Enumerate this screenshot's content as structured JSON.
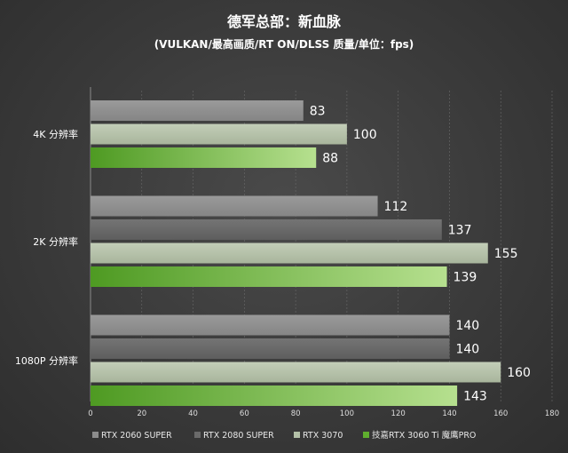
{
  "chart_data": {
    "type": "bar",
    "orientation": "horizontal",
    "title": "德军总部：新血脉",
    "subtitle": "(VULKAN/最高画质/RT ON/DLSS 质量/单位：fps)",
    "xlim": [
      0,
      180
    ],
    "xticks": [
      0,
      20,
      40,
      60,
      80,
      100,
      120,
      140,
      160,
      180
    ],
    "grid": true,
    "legend_position": "bottom",
    "groups": [
      {
        "label": "4K 分辨率",
        "bars": [
          {
            "series": "RTX 2060 SUPER",
            "value": 83
          },
          {
            "series": "RTX 3070",
            "value": 100
          },
          {
            "series": "技嘉RTX 3060 Ti 魔鹰PRO",
            "value": 88
          }
        ]
      },
      {
        "label": "2K 分辨率",
        "bars": [
          {
            "series": "RTX 2060 SUPER",
            "value": 112
          },
          {
            "series": "RTX 2080 SUPER",
            "value": 137
          },
          {
            "series": "RTX 3070",
            "value": 155
          },
          {
            "series": "技嘉RTX 3060 Ti 魔鹰PRO",
            "value": 139
          }
        ]
      },
      {
        "label": "1080P 分辨率",
        "bars": [
          {
            "series": "RTX 2060 SUPER",
            "value": 140
          },
          {
            "series": "RTX 2080 SUPER",
            "value": 140
          },
          {
            "series": "RTX 3070",
            "value": 160
          },
          {
            "series": "技嘉RTX 3060 Ti 魔鹰PRO",
            "value": 143
          }
        ]
      }
    ],
    "series": [
      {
        "name": "RTX 2060 SUPER",
        "color": "#8c8c8c"
      },
      {
        "name": "RTX 2080 SUPER",
        "color": "#6a6a6a"
      },
      {
        "name": "RTX 3070",
        "color": "#b4c1a8"
      },
      {
        "name": "技嘉RTX 3060 Ti 魔鹰PRO",
        "color": "#5fae2e"
      }
    ]
  }
}
